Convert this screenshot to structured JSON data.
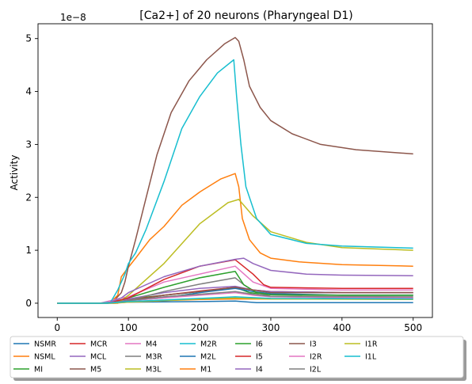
{
  "chart_data": {
    "type": "line",
    "title": "[Ca2+] of 20 neurons (Pharyngeal D1)",
    "xlabel": "",
    "ylabel": "Activity",
    "y_offset_label": "1e−8",
    "xlim": [
      -27,
      527
    ],
    "ylim": [
      -0.27,
      5.28
    ],
    "xticks": [
      0,
      100,
      200,
      300,
      400,
      500
    ],
    "yticks": [
      0,
      1,
      2,
      3,
      4,
      5
    ],
    "grid": false,
    "legend_position": "bottom",
    "series": [
      {
        "name": "NSMR",
        "color": "#1f77b4",
        "values": [
          [
            0,
            0
          ],
          [
            60,
            0
          ],
          [
            100,
            0.02
          ],
          [
            200,
            0.03
          ],
          [
            250,
            0.04
          ],
          [
            280,
            0.01
          ],
          [
            500,
            0.01
          ]
        ]
      },
      {
        "name": "NSML",
        "color": "#ff7f0e",
        "values": [
          [
            0,
            0
          ],
          [
            60,
            0
          ],
          [
            75,
            0.02
          ],
          [
            85,
            0.15
          ],
          [
            90,
            0.5
          ],
          [
            100,
            0.68
          ],
          [
            110,
            0.85
          ],
          [
            130,
            1.2
          ],
          [
            150,
            1.45
          ],
          [
            175,
            1.85
          ],
          [
            200,
            2.1
          ],
          [
            230,
            2.35
          ],
          [
            250,
            2.45
          ],
          [
            255,
            2.2
          ],
          [
            260,
            1.6
          ],
          [
            270,
            1.2
          ],
          [
            285,
            0.95
          ],
          [
            300,
            0.85
          ],
          [
            340,
            0.78
          ],
          [
            400,
            0.73
          ],
          [
            500,
            0.7
          ]
        ]
      },
      {
        "name": "MI",
        "color": "#2ca02c",
        "values": [
          [
            0,
            0
          ],
          [
            70,
            0
          ],
          [
            100,
            0.08
          ],
          [
            150,
            0.15
          ],
          [
            200,
            0.22
          ],
          [
            250,
            0.3
          ],
          [
            270,
            0.2
          ],
          [
            300,
            0.16
          ],
          [
            400,
            0.15
          ],
          [
            500,
            0.15
          ]
        ]
      },
      {
        "name": "MCR",
        "color": "#d62728",
        "values": [
          [
            0,
            0
          ],
          [
            70,
            0
          ],
          [
            100,
            0.06
          ],
          [
            150,
            0.15
          ],
          [
            200,
            0.23
          ],
          [
            250,
            0.3
          ],
          [
            275,
            0.25
          ],
          [
            300,
            0.22
          ],
          [
            400,
            0.2
          ],
          [
            500,
            0.2
          ]
        ]
      },
      {
        "name": "MCL",
        "color": "#9467bd",
        "values": [
          [
            0,
            0
          ],
          [
            70,
            0
          ],
          [
            100,
            0.08
          ],
          [
            150,
            0.2
          ],
          [
            200,
            0.28
          ],
          [
            250,
            0.32
          ],
          [
            275,
            0.25
          ],
          [
            300,
            0.22
          ],
          [
            400,
            0.2
          ],
          [
            500,
            0.2
          ]
        ]
      },
      {
        "name": "M5",
        "color": "#8c564b",
        "values": [
          [
            0,
            0
          ],
          [
            70,
            0
          ],
          [
            80,
            0.05
          ],
          [
            90,
            0.2
          ],
          [
            95,
            0.4
          ],
          [
            100,
            0.7
          ],
          [
            110,
            1.2
          ],
          [
            125,
            2.0
          ],
          [
            140,
            2.8
          ],
          [
            160,
            3.6
          ],
          [
            185,
            4.2
          ],
          [
            210,
            4.6
          ],
          [
            235,
            4.9
          ],
          [
            250,
            5.02
          ],
          [
            255,
            4.95
          ],
          [
            262,
            4.6
          ],
          [
            270,
            4.1
          ],
          [
            285,
            3.7
          ],
          [
            300,
            3.45
          ],
          [
            330,
            3.2
          ],
          [
            370,
            3.0
          ],
          [
            420,
            2.9
          ],
          [
            500,
            2.82
          ]
        ]
      },
      {
        "name": "M4",
        "color": "#e377c2",
        "values": [
          [
            0,
            0
          ],
          [
            60,
            0
          ],
          [
            90,
            0.1
          ],
          [
            100,
            0.12
          ],
          [
            150,
            0.4
          ],
          [
            200,
            0.55
          ],
          [
            250,
            0.7
          ],
          [
            275,
            0.4
          ],
          [
            300,
            0.28
          ],
          [
            400,
            0.25
          ],
          [
            500,
            0.25
          ]
        ]
      },
      {
        "name": "M3R",
        "color": "#7f7f7f",
        "values": [
          [
            0,
            0
          ],
          [
            70,
            0
          ],
          [
            100,
            0.05
          ],
          [
            150,
            0.22
          ],
          [
            200,
            0.36
          ],
          [
            250,
            0.48
          ],
          [
            262,
            0.35
          ],
          [
            280,
            0.2
          ],
          [
            300,
            0.13
          ],
          [
            400,
            0.1
          ],
          [
            500,
            0.1
          ]
        ]
      },
      {
        "name": "M3L",
        "color": "#bcbd22",
        "values": [
          [
            0,
            0
          ],
          [
            70,
            0
          ],
          [
            85,
            0
          ],
          [
            90,
            0.05
          ],
          [
            100,
            0.15
          ],
          [
            150,
            0.75
          ],
          [
            200,
            1.5
          ],
          [
            240,
            1.9
          ],
          [
            255,
            1.96
          ],
          [
            275,
            1.65
          ],
          [
            300,
            1.35
          ],
          [
            350,
            1.15
          ],
          [
            400,
            1.05
          ],
          [
            500,
            1.0
          ]
        ]
      },
      {
        "name": "M2R",
        "color": "#17becf",
        "values": [
          [
            0,
            0
          ],
          [
            60,
            0
          ],
          [
            75,
            0.02
          ],
          [
            85,
            0.25
          ],
          [
            95,
            0.55
          ],
          [
            100,
            0.75
          ],
          [
            110,
            0.95
          ],
          [
            125,
            1.4
          ],
          [
            150,
            2.3
          ],
          [
            175,
            3.3
          ],
          [
            200,
            3.9
          ],
          [
            225,
            4.35
          ],
          [
            248,
            4.6
          ],
          [
            252,
            3.9
          ],
          [
            258,
            3.0
          ],
          [
            265,
            2.2
          ],
          [
            280,
            1.6
          ],
          [
            300,
            1.3
          ],
          [
            350,
            1.13
          ],
          [
            400,
            1.08
          ],
          [
            500,
            1.04
          ]
        ]
      },
      {
        "name": "M2L",
        "color": "#1f77b4",
        "values": [
          [
            0,
            0
          ],
          [
            70,
            0
          ],
          [
            100,
            0.05
          ],
          [
            150,
            0.1
          ],
          [
            200,
            0.2
          ],
          [
            250,
            0.28
          ],
          [
            275,
            0.22
          ],
          [
            300,
            0.18
          ],
          [
            400,
            0.15
          ],
          [
            500,
            0.15
          ]
        ]
      },
      {
        "name": "M1",
        "color": "#ff7f0e",
        "values": [
          [
            0,
            0
          ],
          [
            80,
            0
          ],
          [
            100,
            0.02
          ],
          [
            150,
            0.05
          ],
          [
            200,
            0.07
          ],
          [
            250,
            0.08
          ],
          [
            300,
            0.08
          ],
          [
            500,
            0.08
          ]
        ]
      },
      {
        "name": "I6",
        "color": "#2ca02c",
        "values": [
          [
            0,
            0
          ],
          [
            70,
            0
          ],
          [
            100,
            0.1
          ],
          [
            150,
            0.3
          ],
          [
            200,
            0.48
          ],
          [
            250,
            0.6
          ],
          [
            262,
            0.35
          ],
          [
            280,
            0.2
          ],
          [
            300,
            0.16
          ],
          [
            400,
            0.15
          ],
          [
            500,
            0.15
          ]
        ]
      },
      {
        "name": "I5",
        "color": "#d62728",
        "values": [
          [
            0,
            0
          ],
          [
            70,
            0
          ],
          [
            100,
            0.1
          ],
          [
            150,
            0.45
          ],
          [
            200,
            0.7
          ],
          [
            250,
            0.82
          ],
          [
            275,
            0.55
          ],
          [
            290,
            0.35
          ],
          [
            300,
            0.3
          ],
          [
            400,
            0.28
          ],
          [
            500,
            0.28
          ]
        ]
      },
      {
        "name": "I4",
        "color": "#9467bd",
        "values": [
          [
            0,
            0
          ],
          [
            70,
            0
          ],
          [
            90,
            0.1
          ],
          [
            100,
            0.2
          ],
          [
            150,
            0.5
          ],
          [
            200,
            0.7
          ],
          [
            250,
            0.83
          ],
          [
            262,
            0.85
          ],
          [
            275,
            0.75
          ],
          [
            300,
            0.62
          ],
          [
            350,
            0.55
          ],
          [
            400,
            0.53
          ],
          [
            500,
            0.52
          ]
        ]
      },
      {
        "name": "I3",
        "color": "#8c564b",
        "values": [
          [
            0,
            0
          ],
          [
            70,
            0
          ],
          [
            100,
            0.05
          ],
          [
            150,
            0.15
          ],
          [
            200,
            0.22
          ],
          [
            250,
            0.3
          ],
          [
            275,
            0.25
          ],
          [
            300,
            0.2
          ],
          [
            500,
            0.2
          ]
        ]
      },
      {
        "name": "I2R",
        "color": "#e377c2",
        "values": [
          [
            0,
            0
          ],
          [
            70,
            0
          ],
          [
            100,
            0.05
          ],
          [
            150,
            0.1
          ],
          [
            200,
            0.15
          ],
          [
            250,
            0.2
          ],
          [
            275,
            0.15
          ],
          [
            300,
            0.12
          ],
          [
            500,
            0.1
          ]
        ]
      },
      {
        "name": "I2L",
        "color": "#7f7f7f",
        "values": [
          [
            0,
            0
          ],
          [
            70,
            0
          ],
          [
            100,
            0.05
          ],
          [
            150,
            0.12
          ],
          [
            200,
            0.17
          ],
          [
            250,
            0.22
          ],
          [
            275,
            0.17
          ],
          [
            300,
            0.13
          ],
          [
            500,
            0.12
          ]
        ]
      },
      {
        "name": "I1R",
        "color": "#bcbd22",
        "values": [
          [
            0,
            0
          ],
          [
            70,
            0
          ],
          [
            100,
            0.02
          ],
          [
            150,
            0.05
          ],
          [
            200,
            0.08
          ],
          [
            250,
            0.1
          ],
          [
            300,
            0.08
          ],
          [
            500,
            0.07
          ]
        ]
      },
      {
        "name": "I1L",
        "color": "#17becf",
        "values": [
          [
            0,
            0
          ],
          [
            70,
            0
          ],
          [
            100,
            0.03
          ],
          [
            150,
            0.06
          ],
          [
            200,
            0.09
          ],
          [
            250,
            0.12
          ],
          [
            300,
            0.09
          ],
          [
            500,
            0.08
          ]
        ]
      }
    ]
  }
}
